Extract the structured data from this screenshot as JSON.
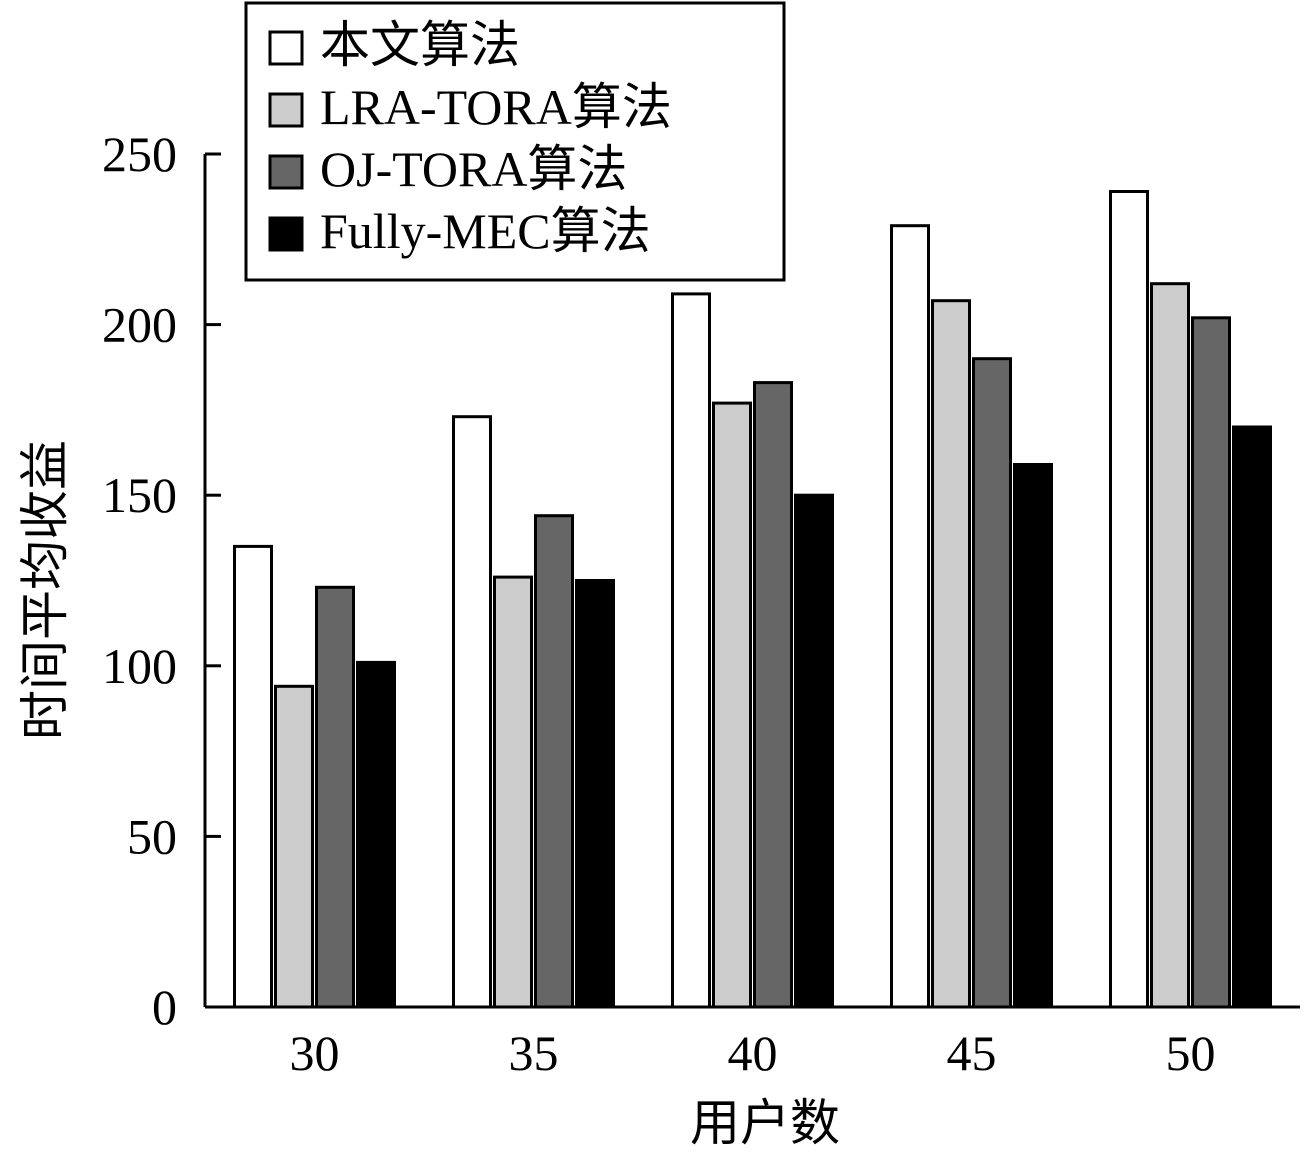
{
  "chart_data": {
    "type": "bar",
    "title": "",
    "xlabel": "用户数",
    "ylabel": "时间平均收益",
    "categories": [
      "30",
      "35",
      "40",
      "45",
      "50"
    ],
    "ylim": [
      0,
      250
    ],
    "yticks": [
      "0",
      "50",
      "100",
      "150",
      "200",
      "250"
    ],
    "grid": false,
    "legend_position": "top-left",
    "series": [
      {
        "name": "本文算法",
        "values": [
          135,
          173,
          209,
          229,
          239
        ],
        "color": "#ffffff"
      },
      {
        "name": "LRA-TORA算法",
        "values": [
          94,
          126,
          177,
          207,
          212
        ],
        "color": "#cccccc"
      },
      {
        "name": "OJ-TORA算法",
        "values": [
          123,
          144,
          183,
          190,
          202
        ],
        "color": "#666666"
      },
      {
        "name": "Fully-MEC算法",
        "values": [
          101,
          125,
          150,
          159,
          170
        ],
        "color": "#000000"
      }
    ]
  }
}
